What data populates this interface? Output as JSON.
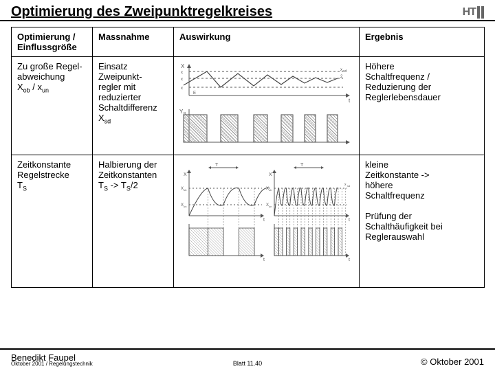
{
  "header": {
    "title": "Optimierung des Zweipunktregelkreises",
    "logo_text": "HT"
  },
  "table": {
    "headers": [
      "Optimierung / Einflussgröße",
      "Massnahme",
      "Auswirkung",
      "Ergebnis"
    ],
    "rows": [
      {
        "c0_html": "Zu große Regel-<br>abweichung<br>X<span class='sub'>ob</span> / x<span class='sub'>un</span>",
        "c1_html": "Einsatz<br>Zweipunkt-<br>regler mit<br>reduzierter<br>Schaltdifferenz<br>X<span class='sub'>sd</span>",
        "c3_html": "Höhere<br>Schaltfrequenz /<br>Reduzierung der<br>Reglerlebensdauer",
        "diagram": "d1",
        "diagram_style": {
          "axis_color": "#555555",
          "line_color": "#444444",
          "hatch_color": "#888888",
          "label_fontsize": 8,
          "x_label": "X",
          "sub_labels": [
            "soll",
            "ob",
            "un"
          ],
          "right_labels": [
            "sd",
            "2"
          ],
          "yr_label": "Y",
          "yr_sub": "R",
          "t": "t",
          "e": "E",
          "trace": [
            [
              6,
              35
            ],
            [
              40,
              15
            ],
            [
              60,
              38
            ],
            [
              85,
              18
            ],
            [
              108,
              36
            ],
            [
              128,
              20
            ],
            [
              148,
              34
            ],
            [
              165,
              22
            ],
            [
              182,
              32
            ],
            [
              198,
              24
            ],
            [
              215,
              31
            ],
            [
              230,
              25
            ]
          ],
          "dash_y": [
            15,
            25,
            38
          ],
          "ytrack_x": [
            [
              6,
              40
            ],
            [
              60,
              85
            ],
            [
              108,
              128
            ],
            [
              148,
              165
            ],
            [
              182,
              198
            ],
            [
              215,
              230
            ]
          ]
        }
      },
      {
        "c0_html": "Zeitkonstante<br>Regelstrecke<br>T<span class='sub'>S</span>",
        "c1_html": "Halbierung der<br>Zeitkonstanten<br>T<span class='sub'>S</span> -> T<span class='sub'>S</span>/2",
        "c3_html": "kleine<br>Zeitkonstante -><br>höhere<br>Schaltfrequenz<br><br>Prüfung der<br>Schalthäufigkeit bei<br>Reglerauswahl",
        "diagram": "d2",
        "diagram_style": {
          "axis_color": "#555555",
          "line_color": "#444444",
          "hatch_color": "#888888",
          "label_fontsize": 7,
          "top_labels": [
            "T",
            "T"
          ],
          "x_label": "X",
          "sub_ob": "ob",
          "sub_un": "un",
          "t": "t",
          "right_label": "sd",
          "left_panel": {
            "cycle_w": 50,
            "n": 2
          },
          "right_panel": {
            "cycle_w": 12,
            "n": 8
          }
        }
      }
    ]
  },
  "footer": {
    "author": "Benedikt Faupel",
    "subline": "Oktober 2001 / Regelungstechnik",
    "center": "Blatt 11.40",
    "right": "© Oktober 2001"
  }
}
